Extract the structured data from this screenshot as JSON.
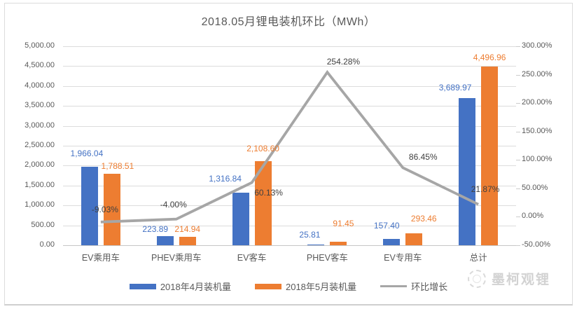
{
  "watermark": {
    "text": "墨柯观锂"
  },
  "chart_data": {
    "type": "bar",
    "subtype": "combo-bar-line-dual-axis",
    "title": "2018.05月锂电装机环比（MWh）",
    "categories": [
      "EV乘用车",
      "PHEV乘用车",
      "EV客车",
      "PHEV客车",
      "EV专用车",
      "总计"
    ],
    "series": [
      {
        "name": "2018年4月装机量",
        "type": "bar",
        "axis": "left",
        "color": "#4472C4",
        "values": [
          1966.04,
          223.89,
          1316.84,
          25.81,
          157.4,
          3689.97
        ],
        "labels": [
          "1,966.04",
          "223.89",
          "1,316.84",
          "25.81",
          "157.40",
          "3,689.97"
        ]
      },
      {
        "name": "2018年5月装机量",
        "type": "bar",
        "axis": "left",
        "color": "#ED7D31",
        "values": [
          1788.51,
          214.94,
          2108.6,
          91.45,
          293.46,
          4496.96
        ],
        "labels": [
          "1,788.51",
          "214.94",
          "2,108.60",
          "91.45",
          "293.46",
          "4,496.96"
        ]
      },
      {
        "name": "环比增长",
        "type": "line",
        "axis": "right",
        "color": "#A6A6A6",
        "values": [
          -9.03,
          -4.0,
          60.13,
          254.28,
          86.45,
          21.87
        ],
        "labels": [
          "-9.03%",
          "-4.00%",
          "60.13%",
          "254.28%",
          "86.45%",
          "21.87%"
        ]
      }
    ],
    "left_axis": {
      "min": 0,
      "max": 5000,
      "step": 500,
      "tick_labels": [
        "5,000.00",
        "4,500.00",
        "4,000.00",
        "3,500.00",
        "3,000.00",
        "2,500.00",
        "2,000.00",
        "1,500.00",
        "1,000.00",
        "500.00",
        "0.00"
      ]
    },
    "right_axis": {
      "min": -50,
      "max": 300,
      "step": 50,
      "tick_labels": [
        "300.00%",
        "250.00%",
        "200.00%",
        "150.00%",
        "100.00%",
        "50.00%",
        "0.00%",
        "-50.00%"
      ]
    },
    "legend_position": "bottom",
    "grid": true,
    "colors": {
      "pct_label": "#404040",
      "axis_text": "#595959",
      "gridline": "#dcdcdc",
      "title": "#595959"
    }
  }
}
